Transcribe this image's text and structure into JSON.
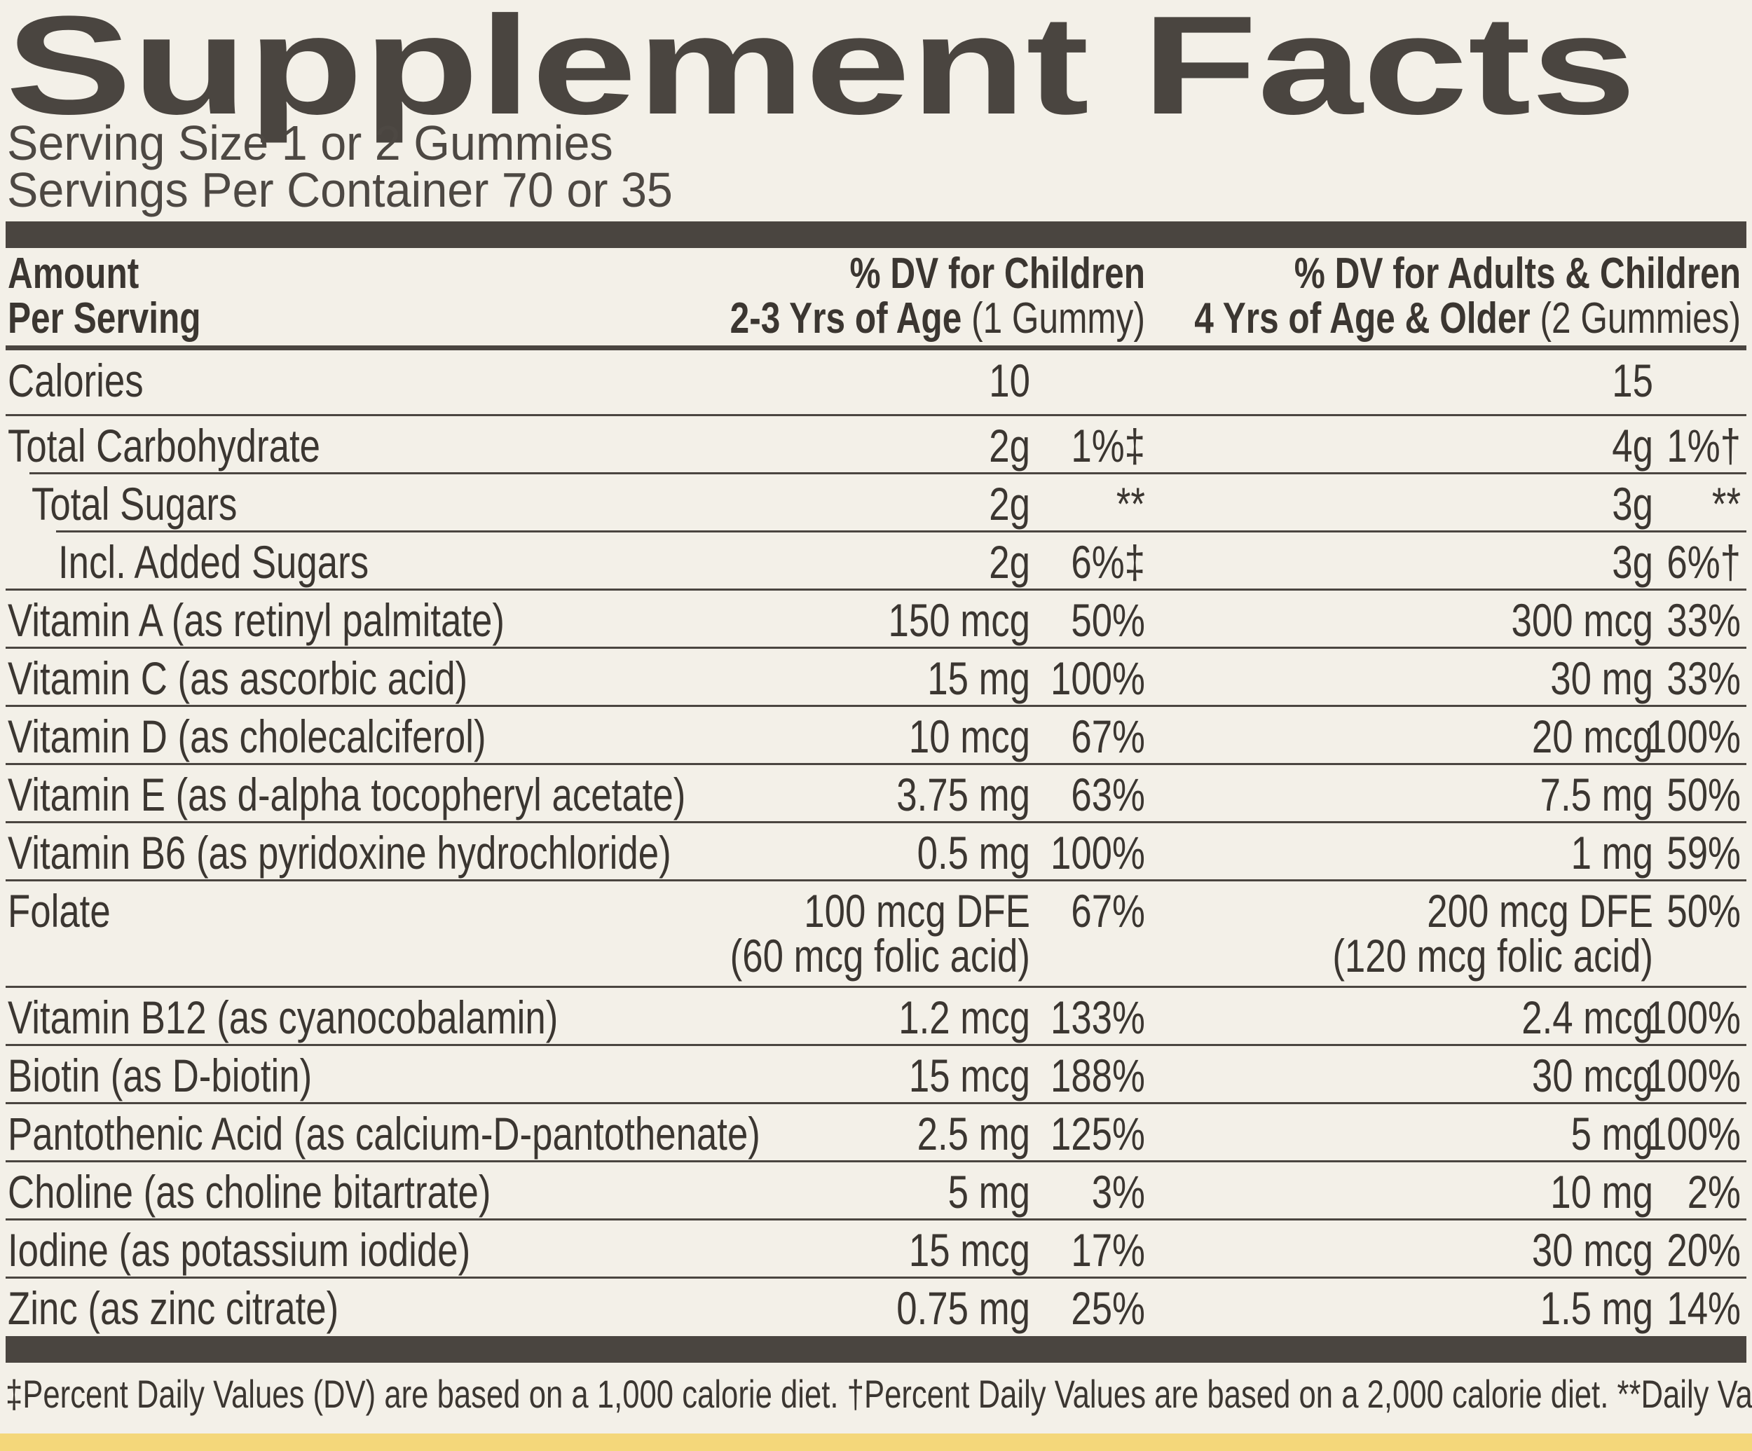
{
  "title": "Supplement Facts",
  "serving_size": "Serving Size 1 or 2 Gummies",
  "servings_per_container": "Servings Per Container 70 or 35",
  "header": {
    "amount": [
      "Amount",
      "Per Serving"
    ],
    "children": {
      "line1": "% DV for Children",
      "line2": "2-3 Yrs of Age",
      "note": "(1 Gummy)"
    },
    "adults": {
      "line1": "% DV for Adults & Children",
      "line2": "4 Yrs of Age & Older",
      "note": "(2 Gummies)"
    }
  },
  "rows": [
    {
      "name": "Calories",
      "child_amount": [
        "10"
      ],
      "adult_amount": [
        "15"
      ]
    },
    {
      "name": "Total Carbohydrate",
      "child_amount": [
        "2g"
      ],
      "child_dv": "1%‡",
      "adult_amount": [
        "4g"
      ],
      "adult_dv": "1%†"
    },
    {
      "name": "Total Sugars",
      "child_amount": [
        "2g"
      ],
      "child_dv": "**",
      "adult_amount": [
        "3g"
      ],
      "adult_dv": "**"
    },
    {
      "name": "Incl. Added Sugars",
      "child_amount": [
        "2g"
      ],
      "child_dv": "6%‡",
      "adult_amount": [
        "3g"
      ],
      "adult_dv": "6%†"
    },
    {
      "name": "Vitamin A (as retinyl palmitate)",
      "child_amount": [
        "150 mcg"
      ],
      "child_dv": "50%",
      "adult_amount": [
        "300 mcg"
      ],
      "adult_dv": "33%"
    },
    {
      "name": "Vitamin C (as ascorbic acid)",
      "child_amount": [
        "15 mg"
      ],
      "child_dv": "100%",
      "adult_amount": [
        "30 mg"
      ],
      "adult_dv": "33%"
    },
    {
      "name": "Vitamin D (as cholecalciferol)",
      "child_amount": [
        "10 mcg"
      ],
      "child_dv": "67%",
      "adult_amount": [
        "20 mcg"
      ],
      "adult_dv": "100%"
    },
    {
      "name": "Vitamin E (as d-alpha tocopheryl acetate)",
      "child_amount": [
        "3.75 mg"
      ],
      "child_dv": "63%",
      "adult_amount": [
        "7.5 mg"
      ],
      "adult_dv": "50%"
    },
    {
      "name": "Vitamin B6 (as pyridoxine hydrochloride)",
      "child_amount": [
        "0.5 mg"
      ],
      "child_dv": "100%",
      "adult_amount": [
        "1 mg"
      ],
      "adult_dv": "59%"
    },
    {
      "name": "Folate",
      "child_amount": [
        "100 mcg DFE",
        "(60 mcg folic acid)"
      ],
      "child_dv": "67%",
      "adult_amount": [
        "200 mcg DFE",
        "(120 mcg folic acid)"
      ],
      "adult_dv": "50%"
    },
    {
      "name": "Vitamin B12 (as cyanocobalamin)",
      "child_amount": [
        "1.2 mcg"
      ],
      "child_dv": "133%",
      "adult_amount": [
        "2.4 mcg"
      ],
      "adult_dv": "100%"
    },
    {
      "name": "Biotin (as D-biotin)",
      "child_amount": [
        "15 mcg"
      ],
      "child_dv": "188%",
      "adult_amount": [
        "30 mcg"
      ],
      "adult_dv": "100%"
    },
    {
      "name": "Pantothenic Acid (as calcium-D-pantothenate)",
      "child_amount": [
        "2.5 mg"
      ],
      "child_dv": "125%",
      "adult_amount": [
        "5 mg"
      ],
      "adult_dv": "100%"
    },
    {
      "name": "Choline (as choline bitartrate)",
      "child_amount": [
        "5 mg"
      ],
      "child_dv": "3%",
      "adult_amount": [
        "10 mg"
      ],
      "adult_dv": "2%"
    },
    {
      "name": "Iodine (as potassium iodide)",
      "child_amount": [
        "15 mcg"
      ],
      "child_dv": "17%",
      "adult_amount": [
        "30 mcg"
      ],
      "adult_dv": "20%"
    },
    {
      "name": "Zinc (as zinc citrate)",
      "child_amount": [
        "0.75 mg"
      ],
      "child_dv": "25%",
      "adult_amount": [
        "1.5 mg"
      ],
      "adult_dv": "14%"
    }
  ],
  "footnotes": [
    "‡Percent Daily Values (DV) are based on a 1,000 calorie diet.",
    "†Percent Daily Values are based on a 2,000 calorie diet.",
    "**Daily Value not established."
  ]
}
